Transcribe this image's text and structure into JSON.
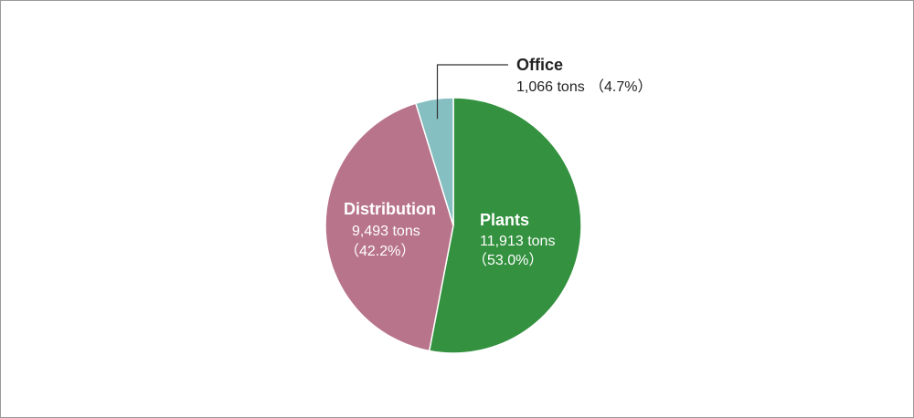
{
  "chart_data": {
    "type": "pie",
    "unit": "tons",
    "slices": [
      {
        "name": "Plants",
        "value": 11913,
        "value_label": "11,913 tons",
        "percent": 53.0,
        "percent_label": "（53.0%）",
        "color": "#33913f",
        "label_color": "#ffffff"
      },
      {
        "name": "Distribution",
        "value": 9493,
        "value_label": "9,493 tons",
        "percent": 42.2,
        "percent_label": "（42.2%）",
        "color": "#b8748a",
        "label_color": "#ffffff"
      },
      {
        "name": "Office",
        "value": 1066,
        "value_label": "1,066 tons",
        "percent": 4.7,
        "percent_label": "（4.7%）",
        "color": "#85bfc1",
        "label_color": "#222222"
      }
    ],
    "start_angle_deg": 0,
    "direction": "clockwise",
    "edge_color": "#ffffff"
  }
}
